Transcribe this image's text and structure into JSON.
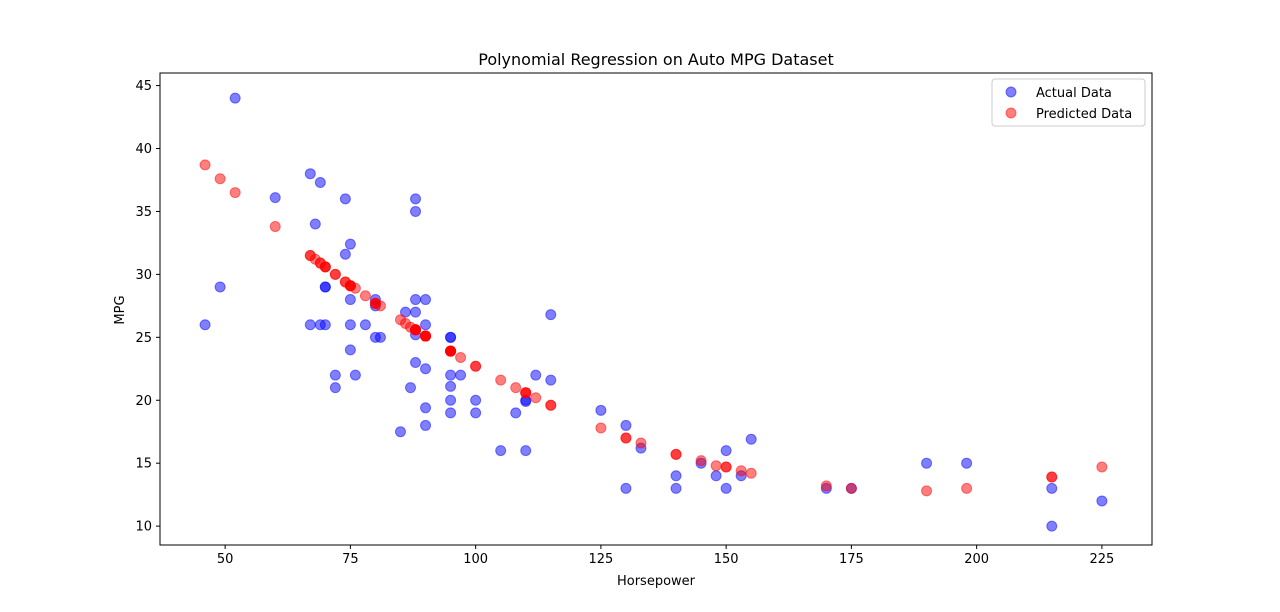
{
  "chart_data": {
    "type": "scatter",
    "title": "Polynomial Regression on Auto MPG Dataset",
    "xlabel": "Horsepower",
    "ylabel": "MPG",
    "xlim": [
      37,
      235
    ],
    "ylim": [
      8.5,
      46
    ],
    "x_ticks": [
      50,
      75,
      100,
      125,
      150,
      175,
      200,
      225
    ],
    "y_ticks": [
      10,
      15,
      20,
      25,
      30,
      35,
      40,
      45
    ],
    "grid": false,
    "legend_position": "top-right",
    "series": [
      {
        "name": "Actual Data",
        "color": "#0000ff",
        "opacity": 0.5,
        "points": [
          [
            46,
            26
          ],
          [
            49,
            29
          ],
          [
            52,
            44
          ],
          [
            60,
            36.1
          ],
          [
            67,
            38
          ],
          [
            67,
            26
          ],
          [
            68,
            34
          ],
          [
            69,
            37.3
          ],
          [
            69,
            26
          ],
          [
            70,
            29
          ],
          [
            70,
            29
          ],
          [
            70,
            26
          ],
          [
            72,
            22
          ],
          [
            72,
            21
          ],
          [
            74,
            36
          ],
          [
            74,
            31.6
          ],
          [
            75,
            32.4
          ],
          [
            75,
            28
          ],
          [
            75,
            26
          ],
          [
            75,
            24
          ],
          [
            76,
            22
          ],
          [
            78,
            26
          ],
          [
            80,
            28
          ],
          [
            80,
            27.5
          ],
          [
            80,
            25
          ],
          [
            81,
            25
          ],
          [
            85,
            17.5
          ],
          [
            86,
            27
          ],
          [
            87,
            21
          ],
          [
            88,
            36
          ],
          [
            88,
            35
          ],
          [
            88,
            28
          ],
          [
            88,
            27
          ],
          [
            88,
            25.2
          ],
          [
            88,
            23
          ],
          [
            90,
            28
          ],
          [
            90,
            26
          ],
          [
            90,
            22.5
          ],
          [
            90,
            19.4
          ],
          [
            90,
            18
          ],
          [
            95,
            25
          ],
          [
            95,
            25
          ],
          [
            95,
            22
          ],
          [
            95,
            21.1
          ],
          [
            95,
            20
          ],
          [
            95,
            19
          ],
          [
            97,
            22
          ],
          [
            100,
            20
          ],
          [
            100,
            19
          ],
          [
            105,
            16
          ],
          [
            108,
            19
          ],
          [
            110,
            20
          ],
          [
            110,
            19.9
          ],
          [
            110,
            16
          ],
          [
            112,
            22
          ],
          [
            115,
            26.8
          ],
          [
            115,
            21.6
          ],
          [
            125,
            19.2
          ],
          [
            130,
            18
          ],
          [
            130,
            13
          ],
          [
            133,
            16.2
          ],
          [
            140,
            14
          ],
          [
            140,
            13
          ],
          [
            145,
            15
          ],
          [
            148,
            14
          ],
          [
            150,
            16
          ],
          [
            150,
            13
          ],
          [
            153,
            14
          ],
          [
            155,
            16.9
          ],
          [
            170,
            13
          ],
          [
            175,
            13
          ],
          [
            190,
            15
          ],
          [
            198,
            15
          ],
          [
            215,
            13
          ],
          [
            215,
            10
          ],
          [
            225,
            12
          ]
        ]
      },
      {
        "name": "Predicted Data",
        "color": "#ff0000",
        "opacity": 0.5,
        "points": [
          [
            46,
            38.7
          ],
          [
            49,
            37.6
          ],
          [
            52,
            36.5
          ],
          [
            60,
            33.8
          ],
          [
            67,
            31.5
          ],
          [
            67,
            31.5
          ],
          [
            68,
            31.2
          ],
          [
            69,
            30.9
          ],
          [
            69,
            30.9
          ],
          [
            70,
            30.6
          ],
          [
            70,
            30.6
          ],
          [
            70,
            30.6
          ],
          [
            72,
            30
          ],
          [
            72,
            30
          ],
          [
            74,
            29.4
          ],
          [
            74,
            29.4
          ],
          [
            75,
            29.1
          ],
          [
            75,
            29.1
          ],
          [
            75,
            29.1
          ],
          [
            75,
            29.1
          ],
          [
            76,
            28.9
          ],
          [
            78,
            28.3
          ],
          [
            80,
            27.7
          ],
          [
            80,
            27.7
          ],
          [
            80,
            27.7
          ],
          [
            81,
            27.5
          ],
          [
            85,
            26.4
          ],
          [
            86,
            26.1
          ],
          [
            87,
            25.8
          ],
          [
            88,
            25.6
          ],
          [
            88,
            25.6
          ],
          [
            88,
            25.6
          ],
          [
            88,
            25.6
          ],
          [
            88,
            25.6
          ],
          [
            88,
            25.6
          ],
          [
            90,
            25.1
          ],
          [
            90,
            25.1
          ],
          [
            90,
            25.1
          ],
          [
            90,
            25.1
          ],
          [
            90,
            25.1
          ],
          [
            95,
            23.9
          ],
          [
            95,
            23.9
          ],
          [
            95,
            23.9
          ],
          [
            95,
            23.9
          ],
          [
            95,
            23.9
          ],
          [
            95,
            23.9
          ],
          [
            97,
            23.4
          ],
          [
            100,
            22.7
          ],
          [
            100,
            22.7
          ],
          [
            105,
            21.6
          ],
          [
            108,
            21
          ],
          [
            110,
            20.6
          ],
          [
            110,
            20.6
          ],
          [
            110,
            20.6
          ],
          [
            112,
            20.2
          ],
          [
            115,
            19.6
          ],
          [
            115,
            19.6
          ],
          [
            125,
            17.8
          ],
          [
            130,
            17
          ],
          [
            130,
            17
          ],
          [
            133,
            16.6
          ],
          [
            140,
            15.7
          ],
          [
            140,
            15.7
          ],
          [
            145,
            15.2
          ],
          [
            148,
            14.8
          ],
          [
            150,
            14.7
          ],
          [
            150,
            14.7
          ],
          [
            153,
            14.4
          ],
          [
            155,
            14.2
          ],
          [
            170,
            13.2
          ],
          [
            175,
            13
          ],
          [
            190,
            12.8
          ],
          [
            198,
            13
          ],
          [
            215,
            13.9
          ],
          [
            215,
            13.9
          ],
          [
            225,
            14.7
          ]
        ]
      }
    ]
  }
}
